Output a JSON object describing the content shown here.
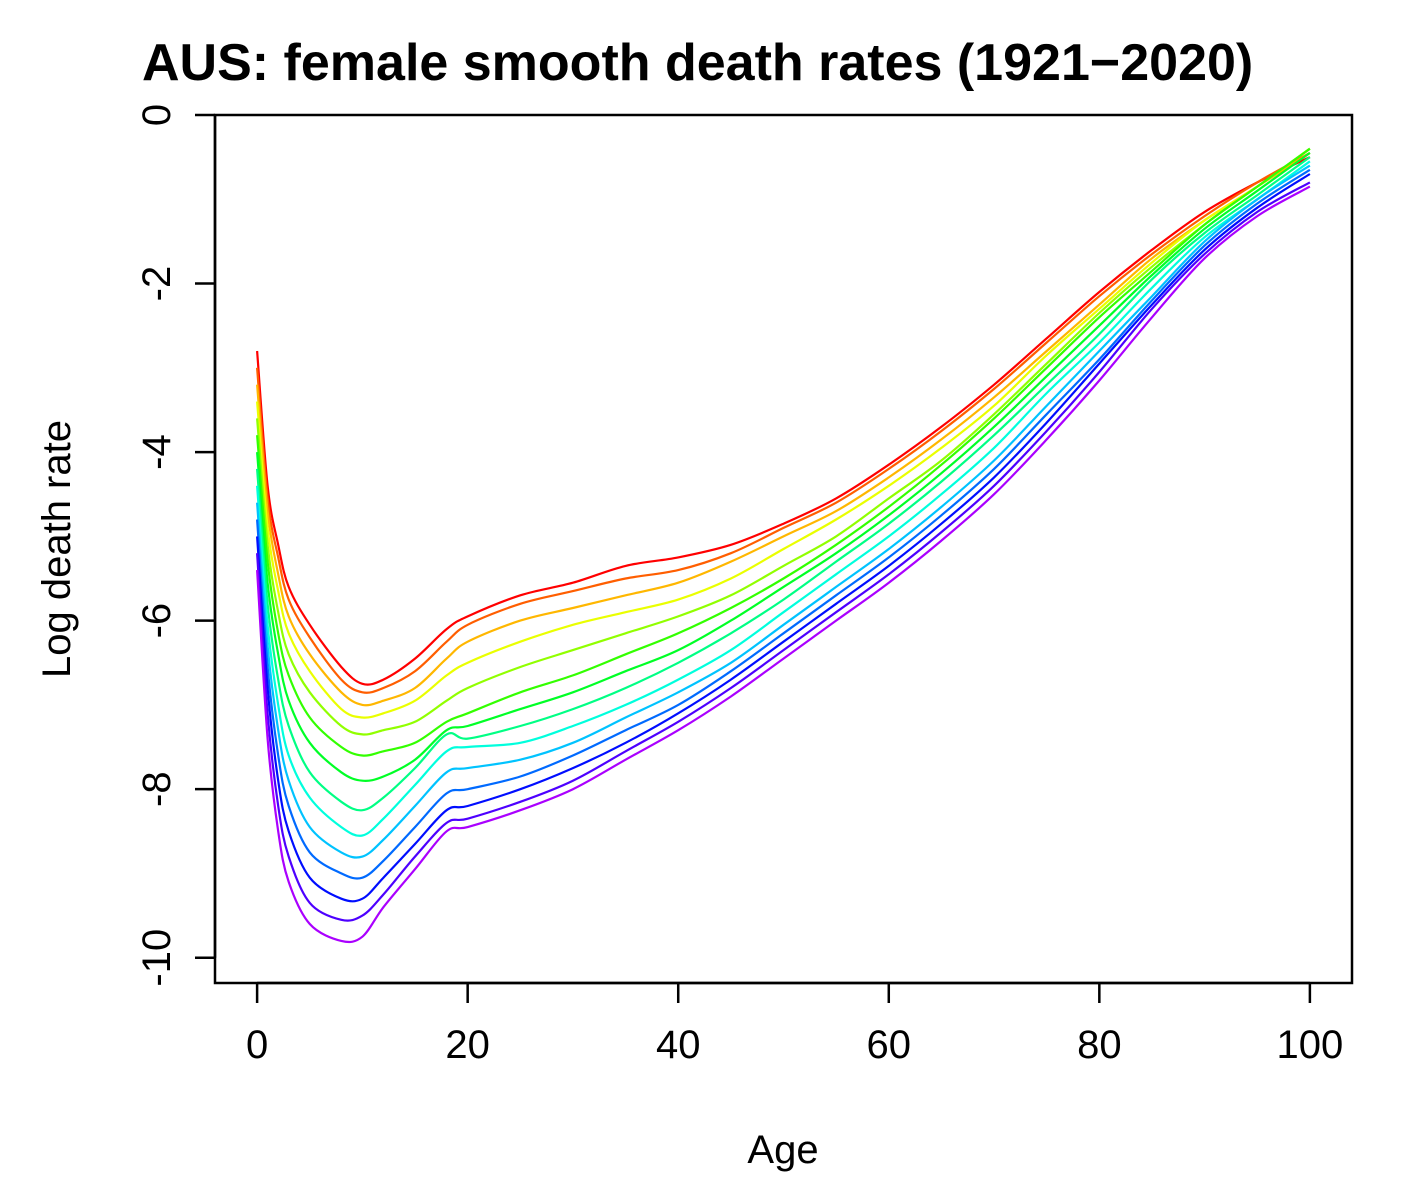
{
  "chart_data": {
    "type": "line",
    "title": "AUS: female smooth death rates (1921−2020)",
    "xlabel": "Age",
    "ylabel": "Log death rate",
    "xlim": [
      -4,
      104
    ],
    "ylim": [
      -10.3,
      0
    ],
    "x_ticks": [
      0,
      20,
      40,
      60,
      80,
      100
    ],
    "x_tick_labels": [
      "0",
      "20",
      "40",
      "60",
      "80",
      "100"
    ],
    "y_ticks": [
      0,
      -2,
      -4,
      -6,
      -8,
      -10
    ],
    "y_tick_labels": [
      "0",
      "-2",
      "-4",
      "-6",
      "-8",
      "-10"
    ],
    "grid": false,
    "legend": "none",
    "color_scheme": "rainbow: red (earliest year) to violet (latest year)",
    "ages": [
      0,
      1,
      2,
      3,
      5,
      8,
      10,
      12,
      15,
      18,
      20,
      25,
      30,
      35,
      40,
      45,
      50,
      55,
      60,
      65,
      70,
      75,
      80,
      85,
      90,
      95,
      100
    ],
    "series": [
      {
        "values": [
          -2.8,
          -4.4,
          -5.1,
          -5.6,
          -6.05,
          -6.55,
          -6.75,
          -6.7,
          -6.45,
          -6.1,
          -5.95,
          -5.7,
          -5.55,
          -5.35,
          -5.25,
          -5.1,
          -4.85,
          -4.55,
          -4.15,
          -3.7,
          -3.2,
          -2.65,
          -2.1,
          -1.6,
          -1.15,
          -0.8,
          -0.5
        ]
      },
      {
        "values": [
          -3.0,
          -4.55,
          -5.25,
          -5.75,
          -6.2,
          -6.7,
          -6.85,
          -6.8,
          -6.6,
          -6.25,
          -6.05,
          -5.8,
          -5.65,
          -5.5,
          -5.4,
          -5.2,
          -4.9,
          -4.6,
          -4.2,
          -3.75,
          -3.25,
          -2.7,
          -2.15,
          -1.65,
          -1.2,
          -0.8,
          -0.45
        ]
      },
      {
        "values": [
          -3.2,
          -4.7,
          -5.45,
          -5.95,
          -6.4,
          -6.85,
          -7.0,
          -6.95,
          -6.8,
          -6.45,
          -6.25,
          -6.0,
          -5.85,
          -5.7,
          -5.55,
          -5.3,
          -5.0,
          -4.7,
          -4.3,
          -3.85,
          -3.35,
          -2.8,
          -2.25,
          -1.7,
          -1.25,
          -0.85,
          -0.45
        ]
      },
      {
        "values": [
          -3.4,
          -4.9,
          -5.65,
          -6.15,
          -6.6,
          -7.05,
          -7.15,
          -7.1,
          -6.95,
          -6.65,
          -6.5,
          -6.25,
          -6.05,
          -5.9,
          -5.75,
          -5.5,
          -5.15,
          -4.8,
          -4.4,
          -3.95,
          -3.45,
          -2.85,
          -2.3,
          -1.75,
          -1.25,
          -0.85,
          -0.4
        ]
      },
      {
        "values": [
          -3.6,
          -5.1,
          -5.9,
          -6.4,
          -6.85,
          -7.25,
          -7.35,
          -7.3,
          -7.2,
          -6.95,
          -6.8,
          -6.55,
          -6.35,
          -6.15,
          -5.95,
          -5.7,
          -5.35,
          -5.0,
          -4.55,
          -4.1,
          -3.55,
          -2.95,
          -2.35,
          -1.8,
          -1.3,
          -0.85,
          -0.4
        ]
      },
      {
        "values": [
          -3.8,
          -5.3,
          -6.15,
          -6.65,
          -7.15,
          -7.5,
          -7.6,
          -7.55,
          -7.45,
          -7.2,
          -7.1,
          -6.85,
          -6.65,
          -6.4,
          -6.15,
          -5.85,
          -5.5,
          -5.1,
          -4.65,
          -4.15,
          -3.6,
          -3.0,
          -2.4,
          -1.85,
          -1.3,
          -0.85,
          -0.4
        ]
      },
      {
        "values": [
          -4.0,
          -5.55,
          -6.4,
          -6.95,
          -7.45,
          -7.8,
          -7.9,
          -7.85,
          -7.65,
          -7.3,
          -7.25,
          -7.05,
          -6.85,
          -6.6,
          -6.35,
          -6.0,
          -5.6,
          -5.2,
          -4.75,
          -4.25,
          -3.7,
          -3.1,
          -2.5,
          -1.9,
          -1.35,
          -0.9,
          -0.45
        ]
      },
      {
        "values": [
          -4.2,
          -5.8,
          -6.7,
          -7.25,
          -7.8,
          -8.15,
          -8.25,
          -8.1,
          -7.75,
          -7.35,
          -7.4,
          -7.25,
          -7.05,
          -6.8,
          -6.5,
          -6.15,
          -5.75,
          -5.3,
          -4.85,
          -4.35,
          -3.8,
          -3.2,
          -2.6,
          -1.95,
          -1.4,
          -0.95,
          -0.5
        ]
      },
      {
        "values": [
          -4.4,
          -6.05,
          -7.0,
          -7.6,
          -8.1,
          -8.45,
          -8.55,
          -8.35,
          -7.95,
          -7.55,
          -7.5,
          -7.45,
          -7.25,
          -7.0,
          -6.7,
          -6.35,
          -5.9,
          -5.45,
          -5.0,
          -4.5,
          -3.95,
          -3.3,
          -2.7,
          -2.05,
          -1.45,
          -1.0,
          -0.55
        ]
      },
      {
        "values": [
          -4.6,
          -6.3,
          -7.3,
          -7.9,
          -8.45,
          -8.75,
          -8.8,
          -8.6,
          -8.2,
          -7.8,
          -7.75,
          -7.65,
          -7.45,
          -7.15,
          -6.85,
          -6.5,
          -6.05,
          -5.6,
          -5.15,
          -4.65,
          -4.1,
          -3.45,
          -2.8,
          -2.15,
          -1.5,
          -1.0,
          -0.6
        ]
      },
      {
        "values": [
          -4.8,
          -6.55,
          -7.6,
          -8.2,
          -8.75,
          -9.0,
          -9.05,
          -8.85,
          -8.45,
          -8.05,
          -8.0,
          -7.85,
          -7.6,
          -7.3,
          -7.0,
          -6.6,
          -6.15,
          -5.7,
          -5.25,
          -4.75,
          -4.2,
          -3.55,
          -2.9,
          -2.2,
          -1.55,
          -1.05,
          -0.65
        ]
      },
      {
        "values": [
          -5.0,
          -6.8,
          -7.9,
          -8.5,
          -9.05,
          -9.3,
          -9.3,
          -9.05,
          -8.65,
          -8.25,
          -8.2,
          -8.0,
          -7.75,
          -7.45,
          -7.1,
          -6.7,
          -6.25,
          -5.8,
          -5.35,
          -4.85,
          -4.3,
          -3.65,
          -2.95,
          -2.25,
          -1.6,
          -1.1,
          -0.7
        ]
      },
      {
        "values": [
          -5.2,
          -7.1,
          -8.2,
          -8.8,
          -9.35,
          -9.55,
          -9.5,
          -9.25,
          -8.8,
          -8.4,
          -8.35,
          -8.15,
          -7.9,
          -7.55,
          -7.2,
          -6.8,
          -6.35,
          -5.9,
          -5.45,
          -4.95,
          -4.4,
          -3.75,
          -3.05,
          -2.3,
          -1.65,
          -1.15,
          -0.8
        ]
      },
      {
        "values": [
          -5.4,
          -7.4,
          -8.5,
          -9.1,
          -9.6,
          -9.8,
          -9.75,
          -9.4,
          -8.95,
          -8.5,
          -8.45,
          -8.25,
          -8.0,
          -7.65,
          -7.3,
          -6.9,
          -6.45,
          -6.0,
          -5.55,
          -5.05,
          -4.5,
          -3.85,
          -3.15,
          -2.4,
          -1.7,
          -1.2,
          -0.85
        ]
      }
    ]
  }
}
